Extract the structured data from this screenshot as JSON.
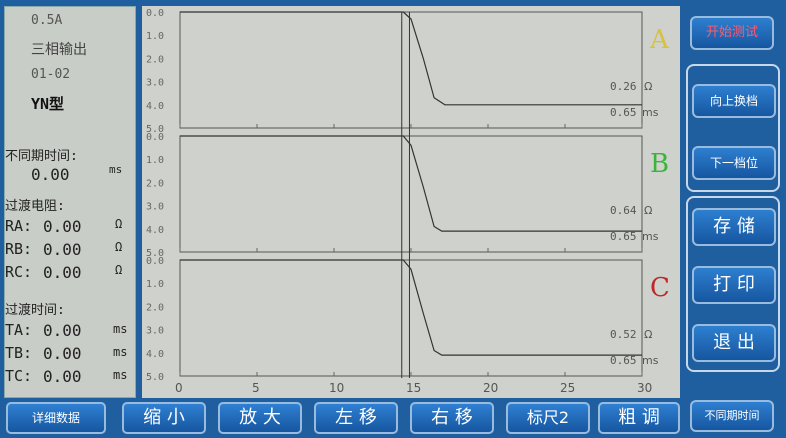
{
  "left_panel": {
    "current": "0.5A",
    "mode": "三相输出",
    "tap": "01-02",
    "connection": "YN型",
    "async_label": "不同期时间:",
    "async_value": "0.00",
    "async_unit": "ms",
    "resistance_label": "过渡电阻:",
    "ra": {
      "name": "RA:",
      "value": "0.00",
      "unit": "Ω"
    },
    "rb": {
      "name": "RB:",
      "value": "0.00",
      "unit": "Ω"
    },
    "rc": {
      "name": "RC:",
      "value": "0.00",
      "unit": "Ω"
    },
    "time_label": "过渡时间:",
    "ta": {
      "name": "TA:",
      "value": "0.00",
      "unit": "ms"
    },
    "tb": {
      "name": "TB:",
      "value": "0.00",
      "unit": "ms"
    },
    "tc": {
      "name": "TC:",
      "value": "0.00",
      "unit": "ms"
    }
  },
  "right_panel": {
    "start_test": "开始测试",
    "tap_up": "向上换档",
    "tap_down": "下一档位",
    "save": "存 储",
    "print": "打 印",
    "exit": "退 出",
    "async_time": "不同期时间"
  },
  "bottom_bar": {
    "details": "详细数据",
    "zoom_out": "缩 小",
    "zoom_in": "放 大",
    "move_left": "左 移",
    "move_right": "右 移",
    "ruler": "标尺2",
    "coarse": "粗 调"
  },
  "colors": {
    "phase_a": "#d8c040",
    "phase_b": "#3cb43c",
    "phase_c": "#c02828",
    "start_text": "#ff5a6e"
  },
  "chart_data": {
    "type": "line",
    "x_ticks": [
      "0",
      "5",
      "10",
      "15",
      "20",
      "25",
      "30"
    ],
    "xlim": [
      0,
      30
    ],
    "y_ticks": [
      "0.0",
      "1.0",
      "2.0",
      "3.0",
      "4.0",
      "5.0"
    ],
    "ylim": [
      0,
      5
    ],
    "y_inverted": true,
    "cursors": [
      14.4,
      14.9
    ],
    "panels": [
      {
        "name": "A",
        "readout_ohm": "0.26",
        "ohm_unit": "Ω",
        "readout_ms": "0.65",
        "ms_unit": "ms",
        "points": [
          [
            0,
            0.0
          ],
          [
            14.5,
            0.0
          ],
          [
            15.0,
            0.3
          ],
          [
            15.8,
            2.0
          ],
          [
            16.5,
            3.7
          ],
          [
            17.2,
            4.0
          ],
          [
            30,
            4.0
          ]
        ]
      },
      {
        "name": "B",
        "readout_ohm": "0.64",
        "ohm_unit": "Ω",
        "readout_ms": "0.65",
        "ms_unit": "ms",
        "points": [
          [
            0,
            0.0
          ],
          [
            14.5,
            0.0
          ],
          [
            15.0,
            0.4
          ],
          [
            15.8,
            2.2
          ],
          [
            16.5,
            3.9
          ],
          [
            17.0,
            4.1
          ],
          [
            30,
            4.1
          ]
        ]
      },
      {
        "name": "C",
        "readout_ohm": "0.52",
        "ohm_unit": "Ω",
        "readout_ms": "0.65",
        "ms_unit": "ms",
        "points": [
          [
            0,
            0.0
          ],
          [
            14.5,
            0.0
          ],
          [
            15.0,
            0.4
          ],
          [
            15.8,
            2.3
          ],
          [
            16.5,
            3.9
          ],
          [
            17.0,
            4.1
          ],
          [
            30,
            4.1
          ]
        ]
      }
    ]
  }
}
